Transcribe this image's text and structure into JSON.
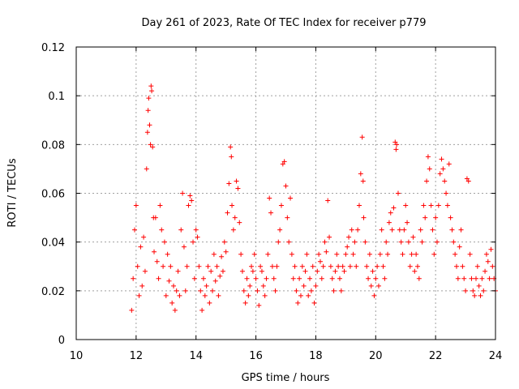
{
  "chart_data": {
    "type": "scatter",
    "title": "Day 261 of 2023, Rate Of TEC Index for receiver p779",
    "xlabel": "GPS time / hours",
    "ylabel": "ROTI / TECUs",
    "xlim": [
      10,
      24
    ],
    "ylim": [
      0,
      0.12
    ],
    "xticks": [
      10,
      12,
      14,
      16,
      18,
      20,
      22,
      24
    ],
    "yticks": [
      0,
      0.02,
      0.04,
      0.06,
      0.08,
      0.1,
      0.12
    ],
    "xtick_labels": [
      "10",
      "12",
      "14",
      "16",
      "18",
      "20",
      "22",
      "24"
    ],
    "ytick_labels": [
      "0",
      "0.02",
      "0.04",
      "0.06",
      "0.08",
      "0.1",
      "0.12"
    ],
    "grid": true,
    "marker": "+",
    "marker_color": "#ff0000",
    "series": [
      {
        "name": "ROTI",
        "points": [
          [
            11.85,
            0.012
          ],
          [
            11.9,
            0.025
          ],
          [
            11.95,
            0.045
          ],
          [
            12.0,
            0.055
          ],
          [
            12.05,
            0.03
          ],
          [
            12.1,
            0.018
          ],
          [
            12.15,
            0.038
          ],
          [
            12.2,
            0.022
          ],
          [
            12.25,
            0.042
          ],
          [
            12.3,
            0.028
          ],
          [
            12.35,
            0.07
          ],
          [
            12.38,
            0.085
          ],
          [
            12.4,
            0.094
          ],
          [
            12.42,
            0.099
          ],
          [
            12.45,
            0.088
          ],
          [
            12.48,
            0.08
          ],
          [
            12.5,
            0.104
          ],
          [
            12.52,
            0.102
          ],
          [
            12.55,
            0.079
          ],
          [
            12.58,
            0.05
          ],
          [
            12.6,
            0.036
          ],
          [
            12.65,
            0.05
          ],
          [
            12.7,
            0.032
          ],
          [
            12.75,
            0.025
          ],
          [
            12.8,
            0.055
          ],
          [
            12.85,
            0.045
          ],
          [
            12.9,
            0.03
          ],
          [
            12.95,
            0.04
          ],
          [
            13.0,
            0.018
          ],
          [
            13.05,
            0.035
          ],
          [
            13.1,
            0.024
          ],
          [
            13.15,
            0.03
          ],
          [
            13.2,
            0.015
          ],
          [
            13.25,
            0.022
          ],
          [
            13.3,
            0.012
          ],
          [
            13.35,
            0.02
          ],
          [
            13.4,
            0.028
          ],
          [
            13.45,
            0.018
          ],
          [
            13.5,
            0.045
          ],
          [
            13.55,
            0.06
          ],
          [
            13.6,
            0.038
          ],
          [
            13.65,
            0.02
          ],
          [
            13.7,
            0.03
          ],
          [
            13.75,
            0.055
          ],
          [
            13.8,
            0.059
          ],
          [
            13.85,
            0.057
          ],
          [
            13.9,
            0.04
          ],
          [
            13.95,
            0.025
          ],
          [
            14.0,
            0.045
          ],
          [
            14.05,
            0.042
          ],
          [
            14.1,
            0.03
          ],
          [
            14.15,
            0.02
          ],
          [
            14.2,
            0.012
          ],
          [
            14.25,
            0.025
          ],
          [
            14.3,
            0.018
          ],
          [
            14.35,
            0.022
          ],
          [
            14.4,
            0.03
          ],
          [
            14.45,
            0.015
          ],
          [
            14.5,
            0.028
          ],
          [
            14.55,
            0.02
          ],
          [
            14.6,
            0.035
          ],
          [
            14.65,
            0.024
          ],
          [
            14.7,
            0.03
          ],
          [
            14.75,
            0.018
          ],
          [
            14.8,
            0.026
          ],
          [
            14.85,
            0.034
          ],
          [
            14.9,
            0.028
          ],
          [
            14.95,
            0.04
          ],
          [
            15.0,
            0.036
          ],
          [
            15.05,
            0.052
          ],
          [
            15.1,
            0.064
          ],
          [
            15.15,
            0.079
          ],
          [
            15.18,
            0.075
          ],
          [
            15.2,
            0.055
          ],
          [
            15.25,
            0.045
          ],
          [
            15.3,
            0.05
          ],
          [
            15.35,
            0.065
          ],
          [
            15.4,
            0.062
          ],
          [
            15.45,
            0.048
          ],
          [
            15.5,
            0.035
          ],
          [
            15.55,
            0.028
          ],
          [
            15.6,
            0.02
          ],
          [
            15.65,
            0.015
          ],
          [
            15.7,
            0.025
          ],
          [
            15.75,
            0.018
          ],
          [
            15.8,
            0.022
          ],
          [
            15.85,
            0.03
          ],
          [
            15.9,
            0.028
          ],
          [
            15.95,
            0.035
          ],
          [
            16.0,
            0.025
          ],
          [
            16.05,
            0.02
          ],
          [
            16.1,
            0.014
          ],
          [
            16.15,
            0.03
          ],
          [
            16.2,
            0.028
          ],
          [
            16.25,
            0.022
          ],
          [
            16.3,
            0.018
          ],
          [
            16.35,
            0.025
          ],
          [
            16.4,
            0.035
          ],
          [
            16.45,
            0.058
          ],
          [
            16.5,
            0.052
          ],
          [
            16.55,
            0.03
          ],
          [
            16.6,
            0.025
          ],
          [
            16.65,
            0.02
          ],
          [
            16.7,
            0.03
          ],
          [
            16.75,
            0.04
          ],
          [
            16.8,
            0.045
          ],
          [
            16.85,
            0.055
          ],
          [
            16.9,
            0.072
          ],
          [
            16.95,
            0.073
          ],
          [
            17.0,
            0.063
          ],
          [
            17.05,
            0.05
          ],
          [
            17.1,
            0.04
          ],
          [
            17.15,
            0.058
          ],
          [
            17.2,
            0.035
          ],
          [
            17.25,
            0.025
          ],
          [
            17.3,
            0.03
          ],
          [
            17.35,
            0.02
          ],
          [
            17.4,
            0.015
          ],
          [
            17.45,
            0.025
          ],
          [
            17.5,
            0.018
          ],
          [
            17.55,
            0.03
          ],
          [
            17.6,
            0.022
          ],
          [
            17.65,
            0.028
          ],
          [
            17.7,
            0.035
          ],
          [
            17.75,
            0.018
          ],
          [
            17.8,
            0.025
          ],
          [
            17.85,
            0.02
          ],
          [
            17.9,
            0.03
          ],
          [
            17.95,
            0.015
          ],
          [
            18.0,
            0.022
          ],
          [
            18.05,
            0.028
          ],
          [
            18.1,
            0.035
          ],
          [
            18.15,
            0.032
          ],
          [
            18.2,
            0.025
          ],
          [
            18.25,
            0.03
          ],
          [
            18.3,
            0.04
          ],
          [
            18.35,
            0.036
          ],
          [
            18.4,
            0.057
          ],
          [
            18.45,
            0.042
          ],
          [
            18.5,
            0.03
          ],
          [
            18.55,
            0.025
          ],
          [
            18.6,
            0.02
          ],
          [
            18.65,
            0.028
          ],
          [
            18.7,
            0.035
          ],
          [
            18.75,
            0.03
          ],
          [
            18.8,
            0.025
          ],
          [
            18.85,
            0.02
          ],
          [
            18.9,
            0.03
          ],
          [
            18.95,
            0.028
          ],
          [
            19.0,
            0.035
          ],
          [
            19.05,
            0.038
          ],
          [
            19.1,
            0.042
          ],
          [
            19.15,
            0.03
          ],
          [
            19.2,
            0.045
          ],
          [
            19.25,
            0.035
          ],
          [
            19.3,
            0.04
          ],
          [
            19.35,
            0.03
          ],
          [
            19.4,
            0.045
          ],
          [
            19.45,
            0.055
          ],
          [
            19.5,
            0.068
          ],
          [
            19.55,
            0.083
          ],
          [
            19.58,
            0.065
          ],
          [
            19.6,
            0.05
          ],
          [
            19.65,
            0.04
          ],
          [
            19.7,
            0.03
          ],
          [
            19.75,
            0.025
          ],
          [
            19.8,
            0.035
          ],
          [
            19.85,
            0.022
          ],
          [
            19.9,
            0.028
          ],
          [
            19.95,
            0.018
          ],
          [
            20.0,
            0.025
          ],
          [
            20.05,
            0.03
          ],
          [
            20.1,
            0.022
          ],
          [
            20.15,
            0.035
          ],
          [
            20.2,
            0.045
          ],
          [
            20.25,
            0.03
          ],
          [
            20.3,
            0.025
          ],
          [
            20.35,
            0.04
          ],
          [
            20.4,
            0.035
          ],
          [
            20.45,
            0.048
          ],
          [
            20.5,
            0.052
          ],
          [
            20.55,
            0.045
          ],
          [
            20.6,
            0.054
          ],
          [
            20.65,
            0.081
          ],
          [
            20.68,
            0.078
          ],
          [
            20.7,
            0.08
          ],
          [
            20.75,
            0.06
          ],
          [
            20.8,
            0.045
          ],
          [
            20.85,
            0.04
          ],
          [
            20.9,
            0.035
          ],
          [
            20.95,
            0.045
          ],
          [
            21.0,
            0.055
          ],
          [
            21.05,
            0.048
          ],
          [
            21.1,
            0.04
          ],
          [
            21.15,
            0.03
          ],
          [
            21.2,
            0.035
          ],
          [
            21.25,
            0.042
          ],
          [
            21.3,
            0.028
          ],
          [
            21.35,
            0.035
          ],
          [
            21.4,
            0.03
          ],
          [
            21.45,
            0.025
          ],
          [
            21.5,
            0.045
          ],
          [
            21.55,
            0.04
          ],
          [
            21.6,
            0.055
          ],
          [
            21.65,
            0.05
          ],
          [
            21.7,
            0.065
          ],
          [
            21.75,
            0.075
          ],
          [
            21.8,
            0.07
          ],
          [
            21.85,
            0.055
          ],
          [
            21.9,
            0.045
          ],
          [
            21.95,
            0.035
          ],
          [
            22.0,
            0.05
          ],
          [
            22.05,
            0.04
          ],
          [
            22.1,
            0.055
          ],
          [
            22.15,
            0.068
          ],
          [
            22.2,
            0.074
          ],
          [
            22.25,
            0.07
          ],
          [
            22.3,
            0.065
          ],
          [
            22.35,
            0.06
          ],
          [
            22.4,
            0.055
          ],
          [
            22.45,
            0.072
          ],
          [
            22.5,
            0.05
          ],
          [
            22.55,
            0.045
          ],
          [
            22.6,
            0.04
          ],
          [
            22.65,
            0.035
          ],
          [
            22.7,
            0.03
          ],
          [
            22.75,
            0.025
          ],
          [
            22.8,
            0.038
          ],
          [
            22.85,
            0.045
          ],
          [
            22.9,
            0.03
          ],
          [
            22.95,
            0.025
          ],
          [
            23.0,
            0.02
          ],
          [
            23.05,
            0.066
          ],
          [
            23.1,
            0.065
          ],
          [
            23.15,
            0.035
          ],
          [
            23.2,
            0.025
          ],
          [
            23.25,
            0.02
          ],
          [
            23.3,
            0.018
          ],
          [
            23.35,
            0.025
          ],
          [
            23.4,
            0.03
          ],
          [
            23.45,
            0.022
          ],
          [
            23.5,
            0.018
          ],
          [
            23.55,
            0.025
          ],
          [
            23.6,
            0.02
          ],
          [
            23.65,
            0.028
          ],
          [
            23.7,
            0.035
          ],
          [
            23.75,
            0.032
          ],
          [
            23.8,
            0.025
          ],
          [
            23.85,
            0.037
          ],
          [
            23.9,
            0.03
          ],
          [
            23.95,
            0.025
          ],
          [
            24.0,
            0.02
          ]
        ]
      }
    ]
  }
}
